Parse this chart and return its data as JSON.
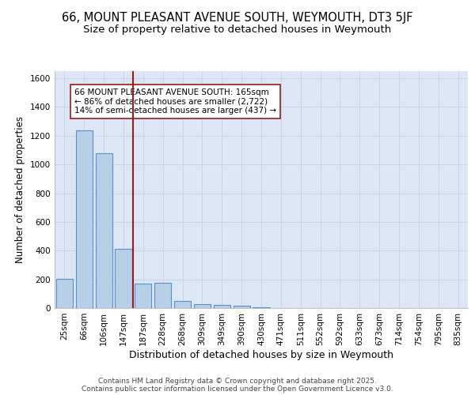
{
  "title1": "66, MOUNT PLEASANT AVENUE SOUTH, WEYMOUTH, DT3 5JF",
  "title2": "Size of property relative to detached houses in Weymouth",
  "xlabel": "Distribution of detached houses by size in Weymouth",
  "ylabel": "Number of detached properties",
  "categories": [
    "25sqm",
    "66sqm",
    "106sqm",
    "147sqm",
    "187sqm",
    "228sqm",
    "268sqm",
    "309sqm",
    "349sqm",
    "390sqm",
    "430sqm",
    "471sqm",
    "511sqm",
    "552sqm",
    "592sqm",
    "633sqm",
    "673sqm",
    "714sqm",
    "754sqm",
    "795sqm",
    "835sqm"
  ],
  "values": [
    205,
    1235,
    1080,
    415,
    170,
    175,
    50,
    25,
    20,
    15,
    5,
    0,
    0,
    0,
    0,
    0,
    0,
    0,
    0,
    0,
    0
  ],
  "bar_color": "#b8cfe8",
  "bar_edge_color": "#5b8fc9",
  "ref_line_x": 3.5,
  "ref_line_color": "#9b1c1c",
  "annotation_text": "66 MOUNT PLEASANT AVENUE SOUTH: 165sqm\n← 86% of detached houses are smaller (2,722)\n14% of semi-detached houses are larger (437) →",
  "annotation_box_color": "#ffffff",
  "annotation_box_edge": "#9b1c1c",
  "ylim": [
    0,
    1650
  ],
  "yticks": [
    0,
    200,
    400,
    600,
    800,
    1000,
    1200,
    1400,
    1600
  ],
  "grid_color": "#c8d4e8",
  "bg_color": "#dce6f5",
  "footer_text": "Contains HM Land Registry data © Crown copyright and database right 2025.\nContains public sector information licensed under the Open Government Licence v3.0.",
  "title1_fontsize": 10.5,
  "title2_fontsize": 9.5,
  "xlabel_fontsize": 9,
  "ylabel_fontsize": 8.5,
  "tick_fontsize": 7.5,
  "annotation_fontsize": 7.5,
  "footer_fontsize": 6.5
}
